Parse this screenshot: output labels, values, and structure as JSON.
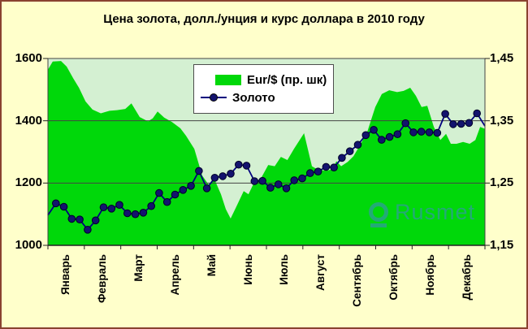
{
  "title": "Цена золота, долл./унция и курс доллара в 2010 году",
  "watermark": "Rusmet",
  "legend": {
    "area_label": "Eur/$ (пр. шк)",
    "line_label": "Золото"
  },
  "colors": {
    "page_bg": "#FFFFCB",
    "frame_border": "#8A4231",
    "plot_bg": "#D4F0D2",
    "area_green": "#00D80A",
    "gold_line": "#00007E",
    "gold_marker": "#13136E",
    "grid": "#444444",
    "axis": "#222222",
    "legend_bg": "#FFFFFF",
    "watermark_blue": "rgba(58,140,190,0.6)",
    "text": "#000000"
  },
  "chart_data": {
    "type": "line",
    "title": "Цена золота, долл./унция и курс доллара в 2010 году",
    "x_categories": [
      "Январь",
      "Февраль",
      "Март",
      "Апрель",
      "Май",
      "Июнь",
      "Июль",
      "Август",
      "Сентябрь",
      "Октябрь",
      "Ноябрь",
      "Декабрь"
    ],
    "left_axis": {
      "series": "Золото",
      "tick_labels": [
        "1600",
        "1400",
        "1200",
        "1000"
      ],
      "tick_values": [
        1600,
        1400,
        1200,
        1000
      ],
      "min": 1000,
      "max": 1600
    },
    "right_axis": {
      "series": "Eur/$",
      "tick_labels": [
        "1,45",
        "1,35",
        "1,25",
        "1,15"
      ],
      "tick_values": [
        1.45,
        1.35,
        1.25,
        1.15
      ],
      "min": 1.15,
      "max": 1.45
    },
    "gridlines_at_left_values": [
      1400,
      1200
    ],
    "legend_position": "top-center",
    "series": [
      {
        "name": "Eur/$ (пр. шк)",
        "type": "area",
        "axis": "right",
        "color": "#00D80A",
        "points_x_fraction_value": [
          [
            0.0,
            1.432
          ],
          [
            0.011,
            1.445
          ],
          [
            0.03,
            1.446
          ],
          [
            0.043,
            1.437
          ],
          [
            0.058,
            1.418
          ],
          [
            0.071,
            1.403
          ],
          [
            0.086,
            1.381
          ],
          [
            0.102,
            1.368
          ],
          [
            0.121,
            1.362
          ],
          [
            0.141,
            1.366
          ],
          [
            0.158,
            1.367
          ],
          [
            0.177,
            1.369
          ],
          [
            0.191,
            1.378
          ],
          [
            0.21,
            1.356
          ],
          [
            0.229,
            1.349
          ],
          [
            0.24,
            1.354
          ],
          [
            0.251,
            1.365
          ],
          [
            0.266,
            1.355
          ],
          [
            0.284,
            1.348
          ],
          [
            0.303,
            1.338
          ],
          [
            0.316,
            1.326
          ],
          [
            0.335,
            1.305
          ],
          [
            0.353,
            1.262
          ],
          [
            0.368,
            1.247
          ],
          [
            0.381,
            1.256
          ],
          [
            0.396,
            1.232
          ],
          [
            0.407,
            1.208
          ],
          [
            0.418,
            1.193
          ],
          [
            0.431,
            1.212
          ],
          [
            0.448,
            1.237
          ],
          [
            0.459,
            1.232
          ],
          [
            0.472,
            1.251
          ],
          [
            0.487,
            1.257
          ],
          [
            0.504,
            1.279
          ],
          [
            0.519,
            1.277
          ],
          [
            0.533,
            1.292
          ],
          [
            0.548,
            1.287
          ],
          [
            0.563,
            1.305
          ],
          [
            0.586,
            1.33
          ],
          [
            0.604,
            1.277
          ],
          [
            0.619,
            1.271
          ],
          [
            0.638,
            1.27
          ],
          [
            0.651,
            1.272
          ],
          [
            0.66,
            1.285
          ],
          [
            0.671,
            1.277
          ],
          [
            0.686,
            1.284
          ],
          [
            0.699,
            1.293
          ],
          [
            0.716,
            1.313
          ],
          [
            0.731,
            1.333
          ],
          [
            0.749,
            1.372
          ],
          [
            0.764,
            1.393
          ],
          [
            0.781,
            1.399
          ],
          [
            0.799,
            1.396
          ],
          [
            0.814,
            1.398
          ],
          [
            0.829,
            1.403
          ],
          [
            0.842,
            1.39
          ],
          [
            0.855,
            1.372
          ],
          [
            0.868,
            1.374
          ],
          [
            0.883,
            1.34
          ],
          [
            0.898,
            1.319
          ],
          [
            0.911,
            1.329
          ],
          [
            0.922,
            1.313
          ],
          [
            0.935,
            1.313
          ],
          [
            0.95,
            1.316
          ],
          [
            0.965,
            1.313
          ],
          [
            0.978,
            1.319
          ],
          [
            0.989,
            1.34
          ],
          [
            1.0,
            1.337
          ]
        ]
      },
      {
        "name": "Золото",
        "type": "line",
        "axis": "left",
        "color": "#00007E",
        "marker_color": "#13136E",
        "weekly_values": [
          1097,
          1135,
          1124,
          1085,
          1083,
          1050,
          1080,
          1122,
          1118,
          1130,
          1103,
          1100,
          1105,
          1126,
          1168,
          1139,
          1163,
          1178,
          1191,
          1239,
          1183,
          1217,
          1222,
          1230,
          1259,
          1256,
          1206,
          1207,
          1185,
          1196,
          1183,
          1209,
          1215,
          1232,
          1237,
          1252,
          1250,
          1281,
          1302,
          1323,
          1354,
          1371,
          1339,
          1348,
          1357,
          1392,
          1363,
          1365,
          1363,
          1361,
          1422,
          1389,
          1390,
          1393,
          1424,
          1383
        ]
      }
    ]
  }
}
